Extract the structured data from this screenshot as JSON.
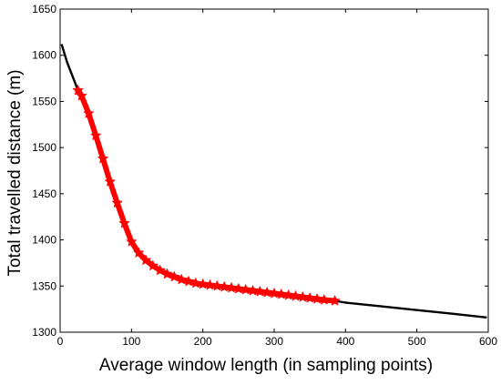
{
  "chart_data": {
    "type": "line",
    "title": "",
    "xlabel": "Average window length (in sampling points)",
    "ylabel": "Total travelled distance (m)",
    "xlim": [
      0,
      600
    ],
    "ylim": [
      1300,
      1650
    ],
    "xticks": [
      0,
      100,
      200,
      300,
      400,
      500,
      600
    ],
    "yticks": [
      1300,
      1350,
      1400,
      1450,
      1500,
      1550,
      1600,
      1650
    ],
    "grid": false,
    "legend": "none",
    "series": [
      {
        "color": "#000000",
        "style": "line",
        "x": [
          2,
          10,
          20,
          25,
          40,
          60,
          80,
          100,
          120,
          150,
          200,
          250,
          300,
          350,
          385,
          400,
          450,
          500,
          550,
          598
        ],
        "y": [
          1612,
          1592,
          1572,
          1562,
          1537,
          1488,
          1440,
          1398,
          1378,
          1363,
          1352,
          1347,
          1342,
          1337,
          1334,
          1332,
          1328,
          1324,
          1320,
          1316
        ]
      },
      {
        "color": "#ff0000",
        "style": "star-markers",
        "x": [
          25,
          30,
          40,
          50,
          60,
          70,
          80,
          90,
          100,
          110,
          120,
          130,
          140,
          150,
          160,
          170,
          180,
          190,
          200,
          210,
          220,
          230,
          240,
          250,
          260,
          270,
          280,
          290,
          300,
          310,
          320,
          330,
          340,
          350,
          360,
          370,
          385
        ],
        "y": [
          1562,
          1556,
          1537,
          1513,
          1488,
          1463,
          1440,
          1418,
          1398,
          1386,
          1378,
          1372,
          1367,
          1363,
          1360,
          1357,
          1355,
          1353,
          1352,
          1351,
          1350,
          1349,
          1348,
          1347,
          1346,
          1345,
          1344,
          1343,
          1342,
          1341,
          1340,
          1339,
          1338,
          1337,
          1336,
          1335,
          1334
        ]
      }
    ]
  }
}
